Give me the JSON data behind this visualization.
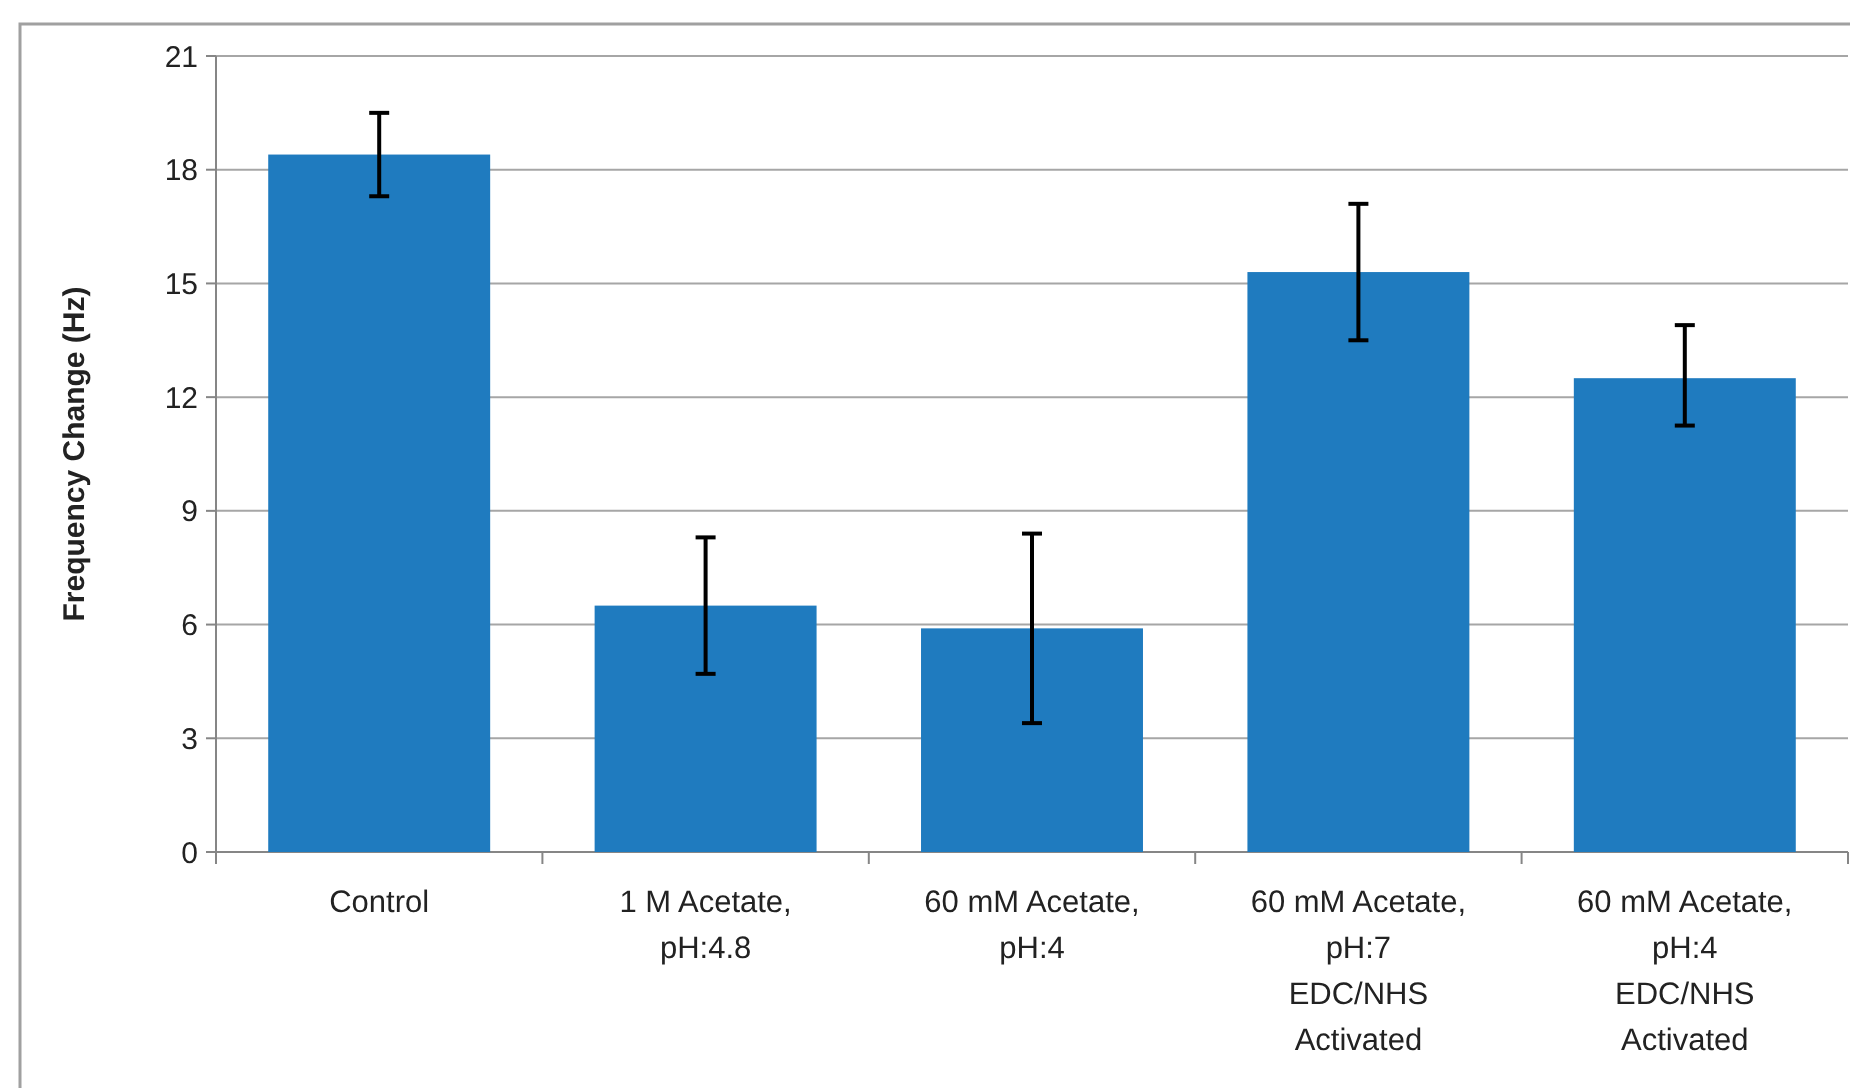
{
  "chart_data": {
    "type": "bar",
    "ylabel": "Frequency Change (Hz)",
    "categories": [
      "Control",
      "1 M Acetate,\npH:4.8",
      "60 mM Acetate,\npH:4",
      "60 mM Acetate,\npH:7\nEDC/NHS\nActivated",
      "60 mM Acetate,\npH:4\nEDC/NHS\nActivated"
    ],
    "values": [
      18.4,
      6.5,
      5.9,
      15.3,
      12.5
    ],
    "errors": [
      [
        17.3,
        19.5
      ],
      [
        4.7,
        8.3
      ],
      [
        3.4,
        8.4
      ],
      [
        13.5,
        17.1
      ],
      [
        11.25,
        13.9
      ]
    ],
    "color": "#1f7bbf",
    "ylim": [
      0,
      21
    ],
    "yticks": [
      0,
      3,
      6,
      9,
      12,
      15,
      18,
      21
    ],
    "grid": "y"
  }
}
